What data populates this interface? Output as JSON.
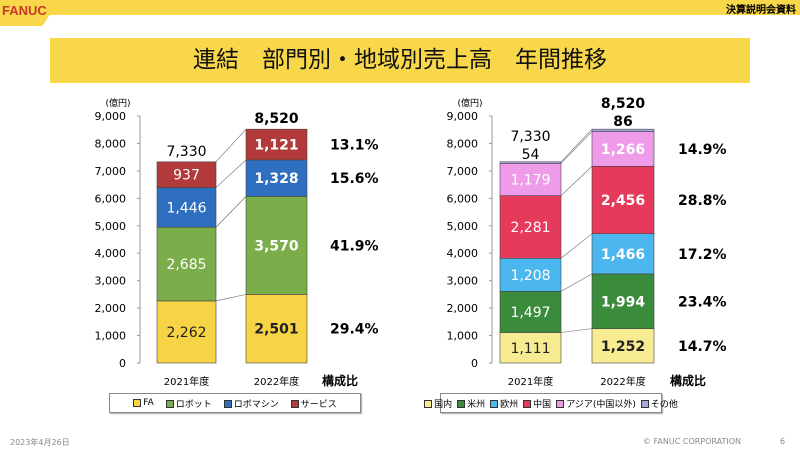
{
  "header": {
    "logo": "FANUC",
    "doc_title": "決算説明会資料"
  },
  "title": "連結　部門別・地域別売上高　年間推移",
  "footer": {
    "date": "2023年4月26日",
    "copyright": "© FANUC CORPORATION",
    "page": "6"
  },
  "chart_data": [
    {
      "type": "bar",
      "stacked": true,
      "ylabel": "(億円)",
      "ylim": [
        0,
        9000
      ],
      "yticks": [
        "0",
        "1,000",
        "2,000",
        "3,000",
        "4,000",
        "5,000",
        "6,000",
        "7,000",
        "8,000",
        "9,000"
      ],
      "categories": [
        "2021年度",
        "2022年度"
      ],
      "totals": [
        "7,330",
        "8,520"
      ],
      "ratio_label": "構成比",
      "series": [
        {
          "name": "FA",
          "color": "#f7d446",
          "values": [
            2262,
            2501
          ],
          "labels": [
            "2,262",
            "2,501"
          ],
          "ratio": "29.4%"
        },
        {
          "name": "ロボット",
          "color": "#7bad4b",
          "values": [
            2685,
            3570
          ],
          "labels": [
            "2,685",
            "3,570"
          ],
          "ratio": "41.9%"
        },
        {
          "name": "ロボマシン",
          "color": "#2f6fbf",
          "values": [
            1446,
            1328
          ],
          "labels": [
            "1,446",
            "1,328"
          ],
          "ratio": "15.6%"
        },
        {
          "name": "サービス",
          "color": "#b33a3a",
          "values": [
            937,
            1121
          ],
          "labels": [
            "937",
            "1,121"
          ],
          "ratio": "13.1%"
        }
      ]
    },
    {
      "type": "bar",
      "stacked": true,
      "ylabel": "(億円)",
      "ylim": [
        0,
        9000
      ],
      "yticks": [
        "0",
        "1,000",
        "2,000",
        "3,000",
        "4,000",
        "5,000",
        "6,000",
        "7,000",
        "8,000",
        "9,000"
      ],
      "categories": [
        "2021年度",
        "2022年度"
      ],
      "totals": [
        "7,330",
        "8,520"
      ],
      "ratio_label": "構成比",
      "series": [
        {
          "name": "国内",
          "color": "#f7ec92",
          "values": [
            1111,
            1252
          ],
          "labels": [
            "1,111",
            "1,252"
          ],
          "ratio": "14.7%"
        },
        {
          "name": "米州",
          "color": "#3a8b3b",
          "values": [
            1497,
            1994
          ],
          "labels": [
            "1,497",
            "1,994"
          ],
          "ratio": "23.4%"
        },
        {
          "name": "欧州",
          "color": "#4cb6ef",
          "values": [
            1208,
            1466
          ],
          "labels": [
            "1,208",
            "1,466"
          ],
          "ratio": "17.2%"
        },
        {
          "name": "中国",
          "color": "#e63a5c",
          "values": [
            2281,
            2456
          ],
          "labels": [
            "2,281",
            "2,456"
          ],
          "ratio": "28.8%"
        },
        {
          "name": "アジア(中国以外)",
          "color": "#ee9be9",
          "values": [
            1179,
            1266
          ],
          "labels": [
            "1,179",
            "1,266"
          ],
          "ratio": "14.9%"
        },
        {
          "name": "その他",
          "color": "#a9a9e2",
          "values": [
            54,
            86
          ],
          "labels": [
            "54",
            "86"
          ],
          "ratio": ""
        }
      ]
    }
  ]
}
